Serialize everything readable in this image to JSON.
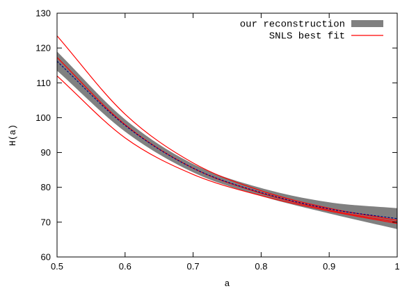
{
  "chart_data": {
    "type": "line",
    "xlabel": "a",
    "ylabel": "H(a)",
    "xlim": [
      0.5,
      1.0
    ],
    "ylim": [
      60,
      130
    ],
    "x_ticks": [
      0.5,
      0.6,
      0.7,
      0.8,
      0.9,
      1.0
    ],
    "x_tick_labels": [
      "0.5",
      "0.6",
      "0.7",
      "0.8",
      "0.9",
      "1"
    ],
    "y_ticks": [
      60,
      70,
      80,
      90,
      100,
      110,
      120,
      130
    ],
    "y_tick_labels": [
      "60",
      "70",
      "80",
      "90",
      "100",
      "110",
      "120",
      "130"
    ],
    "legend_position": "top-right",
    "legend": [
      {
        "label": "our reconstruction",
        "style": "band",
        "color": "#808080"
      },
      {
        "label": "SNLS best fit",
        "style": "line",
        "color": "#ff0000"
      }
    ],
    "x": [
      0.5,
      0.6,
      0.7,
      0.8,
      0.9,
      1.0
    ],
    "series": [
      {
        "name": "our reconstruction",
        "kind": "band",
        "color": "#808080",
        "lower": [
          113.5,
          96.0,
          84.3,
          77.5,
          72.5,
          68.0
        ],
        "upper": [
          119.0,
          99.5,
          86.7,
          79.8,
          75.7,
          74.0
        ]
      },
      {
        "kind": "dashed",
        "color": "#000080",
        "values": [
          116.2,
          97.8,
          85.5,
          78.5,
          73.8,
          71.0
        ]
      },
      {
        "name": "SNLS best fit",
        "kind": "line",
        "color": "#ff0000",
        "values": [
          117.3,
          98.0,
          85.5,
          78.3,
          73.5,
          70.0
        ]
      },
      {
        "kind": "line",
        "color": "#ff0000",
        "values": [
          123.5,
          101.0,
          87.0,
          79.0,
          74.0,
          70.5
        ]
      },
      {
        "kind": "line",
        "color": "#ff0000",
        "values": [
          112.0,
          94.2,
          83.7,
          77.6,
          73.2,
          69.6
        ]
      }
    ]
  }
}
